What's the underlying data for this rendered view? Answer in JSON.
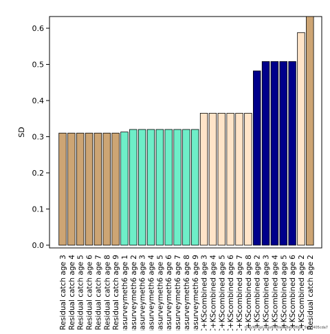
{
  "chart_data": {
    "type": "bar",
    "ylabel": "SD",
    "ylim": [
      0,
      0.63
    ],
    "yticks": [
      "0.0",
      "0.1",
      "0.2",
      "0.3",
      "0.4",
      "0.5",
      "0.6"
    ],
    "categories": [
      "Residual catch age 3",
      "Residual catch age 4",
      "Residual catch age 5",
      "Residual catch age 6",
      "Residual catch age 7",
      "Residual catch age 8",
      "Residual catch age 9",
      "uasurveymeth6 age 1",
      "uasurveymeth6 age 2",
      "uasurveymeth6 age 3",
      "uasurveymeth6 age 4",
      "uasurveymeth6 age 5",
      "uasurveymeth6 age 6",
      "uasurveymeth6 age 7",
      "uasurveymeth6 age 8",
      "uasurveymeth6 age 9",
      "C+KScombined age 3",
      "C+KScombined age 4",
      "C+KScombined age 5",
      "C+KScombined age 6",
      "C+KScombined age 7",
      "C+KScombined age 8",
      "C+KScombined age 2",
      "C+KScombined age 3",
      "C+KScombined age 4",
      "C+KScombined age 5",
      "C+KScombined age 6",
      "C+KScombined age 2",
      "Residual catch age 2"
    ],
    "values": [
      0.31,
      0.31,
      0.31,
      0.31,
      0.31,
      0.31,
      0.31,
      0.313,
      0.32,
      0.32,
      0.32,
      0.32,
      0.32,
      0.32,
      0.32,
      0.32,
      0.365,
      0.365,
      0.365,
      0.365,
      0.365,
      0.365,
      0.482,
      0.508,
      0.508,
      0.508,
      0.508,
      0.588,
      0.635
    ],
    "colors": [
      "#CDA574",
      "#CDA574",
      "#CDA574",
      "#CDA574",
      "#CDA574",
      "#CDA574",
      "#CDA574",
      "#6EEEC8",
      "#6EEEC8",
      "#6EEEC8",
      "#6EEEC8",
      "#6EEEC8",
      "#6EEEC8",
      "#6EEEC8",
      "#6EEEC8",
      "#6EEEC8",
      "#FFE4C8",
      "#FFE4C8",
      "#FFE4C8",
      "#FFE4C8",
      "#FFE4C8",
      "#FFE4C8",
      "#00008B",
      "#00008B",
      "#00008B",
      "#00008B",
      "#00008B",
      "#FFE4C8",
      "#CDA574"
    ],
    "grid": false,
    "watermark": "tmp/RtmpUdgo6h/file6a8e03f6b8_5b33405cda7"
  }
}
